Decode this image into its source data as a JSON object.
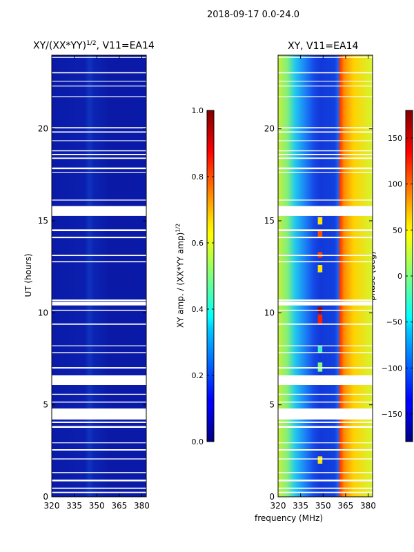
{
  "chart_data": [
    {
      "type": "heatmap",
      "suptitle": "2018-09-17 0.0-24.0",
      "title": "XY/(XX*YY)^1/2, V11=EA14",
      "title_main": "XY/(XX*YY)",
      "title_sup": "1/2",
      "title_rest": ", V11=EA14",
      "xlabel": "frequency (MHz)",
      "ylabel": "UT (hours)",
      "xlim": [
        320,
        383
      ],
      "ylim": [
        0,
        24
      ],
      "xticks": [
        320,
        335,
        350,
        365,
        380
      ],
      "yticks": [
        0,
        5,
        10,
        15,
        20
      ],
      "colorbar": {
        "label_main": "XY amp. / (XX*YY amp)",
        "label_sup": "1/2",
        "range": [
          0.0,
          1.0
        ],
        "ticks": [
          "0.0",
          "0.2",
          "0.4",
          "0.6",
          "0.8",
          "1.0"
        ],
        "colormap": "jet"
      },
      "z_description": "near-zero normalized amplitude; faint enhancement near 348 MHz",
      "gaps_hours": [
        [
          4.2,
          4.8
        ],
        [
          15.3,
          15.8
        ],
        [
          10.4,
          10.6
        ],
        [
          6.1,
          6.6
        ]
      ]
    },
    {
      "type": "heatmap",
      "title": "XY, V11=EA14",
      "xlabel": "frequency (MHz)",
      "ylabel": "",
      "xlim": [
        320,
        383
      ],
      "ylim": [
        0,
        24
      ],
      "xticks": [
        320,
        335,
        350,
        365,
        380
      ],
      "yticks": [
        0,
        5,
        10,
        15,
        20
      ],
      "colorbar": {
        "label": "phase (deg)",
        "range": [
          -180,
          180
        ],
        "ticks": [
          "150",
          "100",
          "50",
          "0",
          "−50",
          "−100",
          "−150"
        ],
        "colormap": "jet"
      },
      "phase_profile_deg": {
        "frequency": [
          320,
          330,
          335,
          345,
          350,
          355,
          360,
          363,
          370,
          383
        ],
        "phase": [
          25,
          0,
          -60,
          -120,
          -150,
          -140,
          -90,
          130,
          60,
          40
        ]
      },
      "gaps_hours": [
        [
          4.2,
          4.8
        ],
        [
          15.3,
          15.8
        ],
        [
          10.4,
          10.6
        ],
        [
          6.1,
          6.6
        ]
      ]
    }
  ],
  "figure": {
    "xlabel_shared": "frequency (MHz)"
  }
}
